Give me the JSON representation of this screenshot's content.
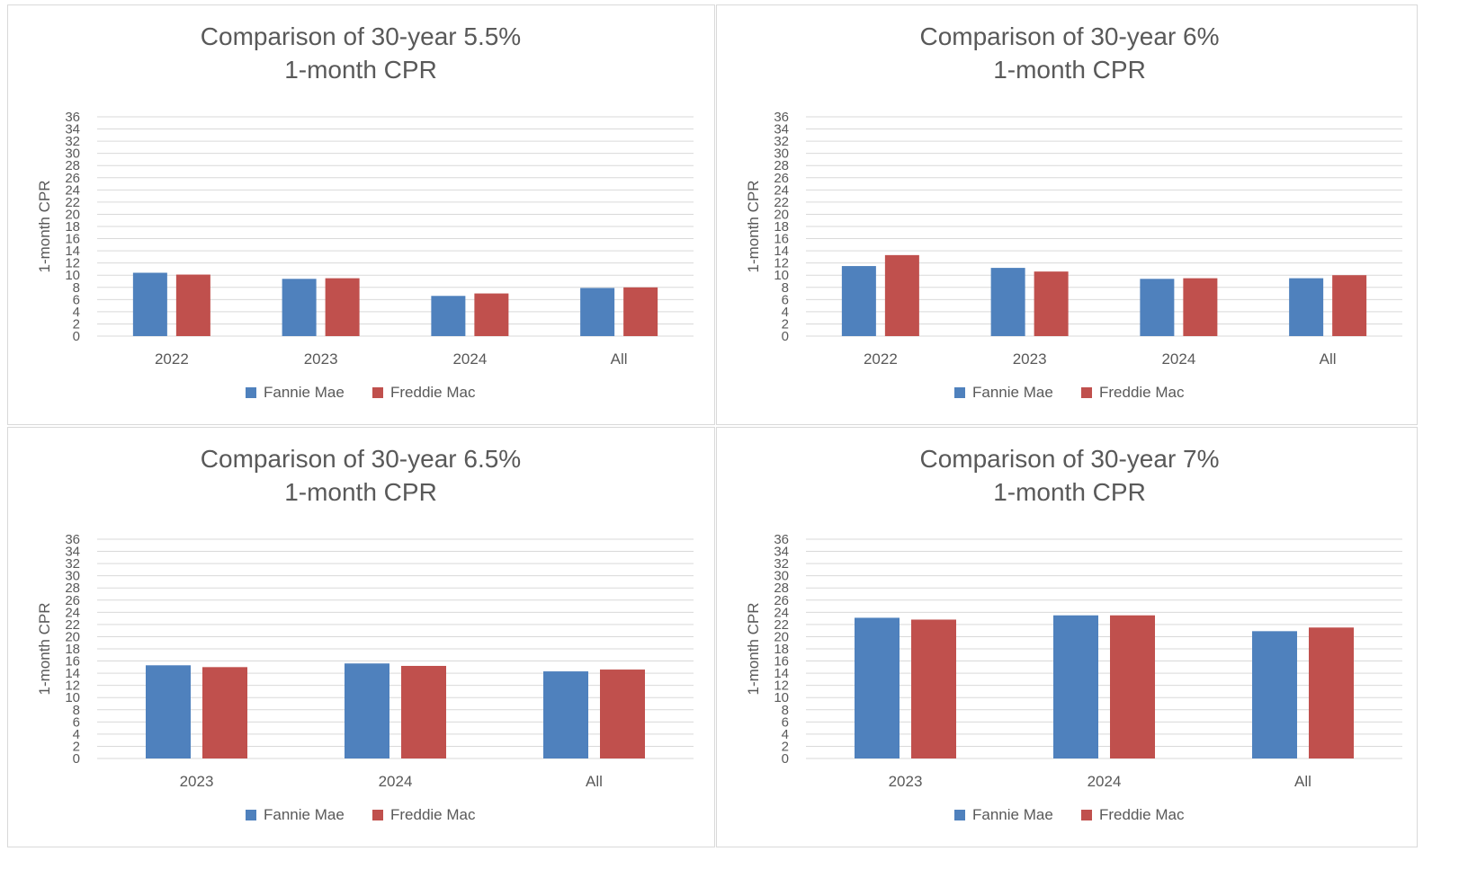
{
  "colors": {
    "fannie_mae": "#4f81bd",
    "freddie_mac": "#c0504d"
  },
  "chart_data": [
    {
      "type": "bar",
      "title": "Comparison of 30-year 5.5%\n1-month CPR",
      "xlabel": "",
      "ylabel": "1-month CPR",
      "ylim": [
        0,
        36
      ],
      "ytick_step": 2,
      "grid": true,
      "legend_position": "bottom",
      "categories": [
        "2022",
        "2023",
        "2024",
        "All"
      ],
      "series": [
        {
          "name": "Fannie Mae",
          "color": "#4f81bd",
          "values": [
            10.4,
            9.4,
            6.6,
            7.9
          ]
        },
        {
          "name": "Freddie Mac",
          "color": "#c0504d",
          "values": [
            10.1,
            9.5,
            7.0,
            8.0
          ]
        }
      ]
    },
    {
      "type": "bar",
      "title": "Comparison of 30-year 6%\n1-month CPR",
      "xlabel": "",
      "ylabel": "1-month CPR",
      "ylim": [
        0,
        36
      ],
      "ytick_step": 2,
      "grid": true,
      "legend_position": "bottom",
      "categories": [
        "2022",
        "2023",
        "2024",
        "All"
      ],
      "series": [
        {
          "name": "Fannie Mae",
          "color": "#4f81bd",
          "values": [
            11.5,
            11.2,
            9.4,
            9.5
          ]
        },
        {
          "name": "Freddie Mac",
          "color": "#c0504d",
          "values": [
            13.3,
            10.6,
            9.5,
            10.0
          ]
        }
      ]
    },
    {
      "type": "bar",
      "title": "Comparison of 30-year 6.5%\n1-month CPR",
      "xlabel": "",
      "ylabel": "1-month CPR",
      "ylim": [
        0,
        36
      ],
      "ytick_step": 2,
      "grid": true,
      "legend_position": "bottom",
      "categories": [
        "2023",
        "2024",
        "All"
      ],
      "series": [
        {
          "name": "Fannie Mae",
          "color": "#4f81bd",
          "values": [
            15.3,
            15.6,
            14.3
          ]
        },
        {
          "name": "Freddie Mac",
          "color": "#c0504d",
          "values": [
            15.0,
            15.2,
            14.6
          ]
        }
      ]
    },
    {
      "type": "bar",
      "title": "Comparison of 30-year 7%\n1-month CPR",
      "xlabel": "",
      "ylabel": "1-month CPR",
      "ylim": [
        0,
        36
      ],
      "ytick_step": 2,
      "grid": true,
      "legend_position": "bottom",
      "categories": [
        "2023",
        "2024",
        "All"
      ],
      "series": [
        {
          "name": "Fannie Mae",
          "color": "#4f81bd",
          "values": [
            23.1,
            23.5,
            20.9
          ]
        },
        {
          "name": "Freddie Mac",
          "color": "#c0504d",
          "values": [
            22.8,
            23.5,
            21.5
          ]
        }
      ]
    }
  ]
}
